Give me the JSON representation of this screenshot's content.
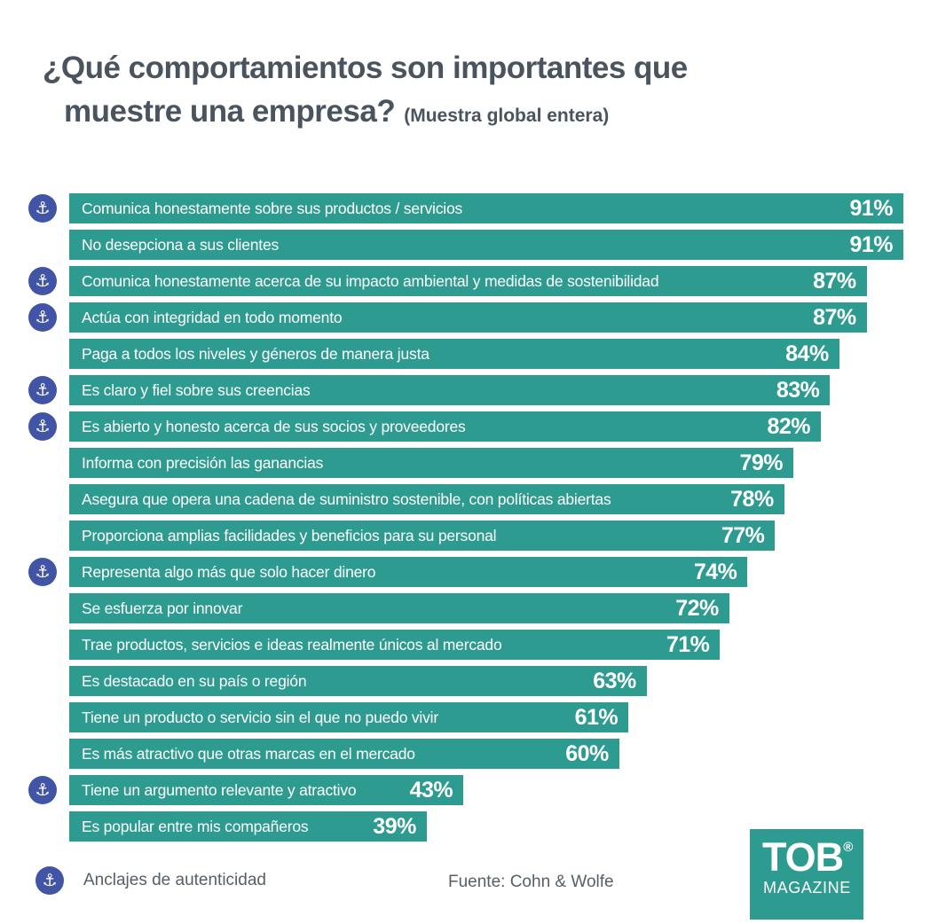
{
  "header": {
    "title_line1": "¿Qué comportamientos son importantes que",
    "title_line2": "muestre una empresa?",
    "subtitle": "(Muestra global entera)"
  },
  "chart_data": {
    "type": "bar",
    "orientation": "horizontal",
    "title": "¿Qué comportamientos son importantes que muestre una empresa? (Muestra global entera)",
    "unit": "%",
    "xmax": 91,
    "value_labels": "inside-right",
    "anchor_meaning": "Anclajes de autenticidad",
    "bars": [
      {
        "label": "Comunica honestamente sobre sus productos / servicios",
        "value": 91,
        "anchor": true
      },
      {
        "label": "No desepciona a sus clientes",
        "value": 91,
        "anchor": false
      },
      {
        "label": "Comunica honestamente acerca de su impacto ambiental y medidas de sostenibilidad",
        "value": 87,
        "anchor": true
      },
      {
        "label": "Actúa con integridad en todo momento",
        "value": 87,
        "anchor": true
      },
      {
        "label": "Paga a todos los niveles y géneros de manera justa",
        "value": 84,
        "anchor": false
      },
      {
        "label": "Es claro y fiel sobre sus creencias",
        "value": 83,
        "anchor": true
      },
      {
        "label": "Es abierto y honesto acerca de sus socios y proveedores",
        "value": 82,
        "anchor": true
      },
      {
        "label": "Informa con precisión las ganancias",
        "value": 79,
        "anchor": false
      },
      {
        "label": "Asegura que opera una cadena de suministro sostenible, con políticas abiertas",
        "value": 78,
        "anchor": false
      },
      {
        "label": "Proporciona amplias facilidades y beneficios para su personal",
        "value": 77,
        "anchor": false
      },
      {
        "label": "Representa algo más que solo hacer dinero",
        "value": 74,
        "anchor": true
      },
      {
        "label": "Se esfuerza por innovar",
        "value": 72,
        "anchor": false
      },
      {
        "label": "Trae productos, servicios e ideas realmente únicos al mercado",
        "value": 71,
        "anchor": false
      },
      {
        "label": "Es destacado en su país o región",
        "value": 63,
        "anchor": false
      },
      {
        "label": "Tiene un producto o servicio sin el que no puedo vivir",
        "value": 61,
        "anchor": false
      },
      {
        "label": "Es más atractivo que otras marcas en el mercado",
        "value": 60,
        "anchor": false
      },
      {
        "label": "Tiene un argumento relevante y atractivo",
        "value": 43,
        "anchor": true
      },
      {
        "label": "Es popular entre mis compañeros",
        "value": 39,
        "anchor": false
      }
    ]
  },
  "footer": {
    "legend_label": "Anclajes de autenticidad",
    "source": "Fuente: Cohn & Wolfe"
  },
  "logo": {
    "line1": "TOB",
    "registered": "®",
    "line2": "MAGAZINE"
  },
  "icons": {
    "anchor": "⚓"
  },
  "colors": {
    "bar": "#2E9B91",
    "anchor_badge": "#4254A5",
    "title": "#4A545E",
    "muted_text": "#575F66",
    "logo_background": "#2E9B91",
    "text_on_bar": "#FFFFFF"
  }
}
